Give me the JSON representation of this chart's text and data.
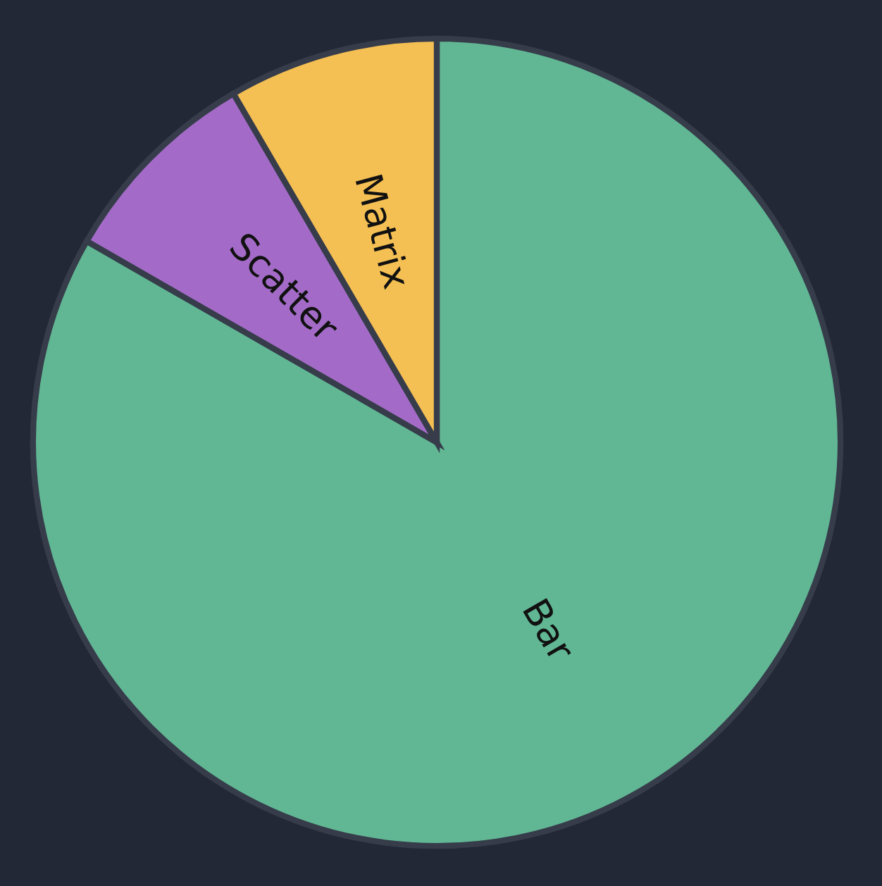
{
  "chart_data": {
    "type": "pie",
    "categories": [
      "Bar",
      "Scatter",
      "Matrix"
    ],
    "values": [
      83.3,
      8.3,
      8.4
    ],
    "colors": [
      "#61b794",
      "#a36bc7",
      "#f4bf53"
    ]
  }
}
